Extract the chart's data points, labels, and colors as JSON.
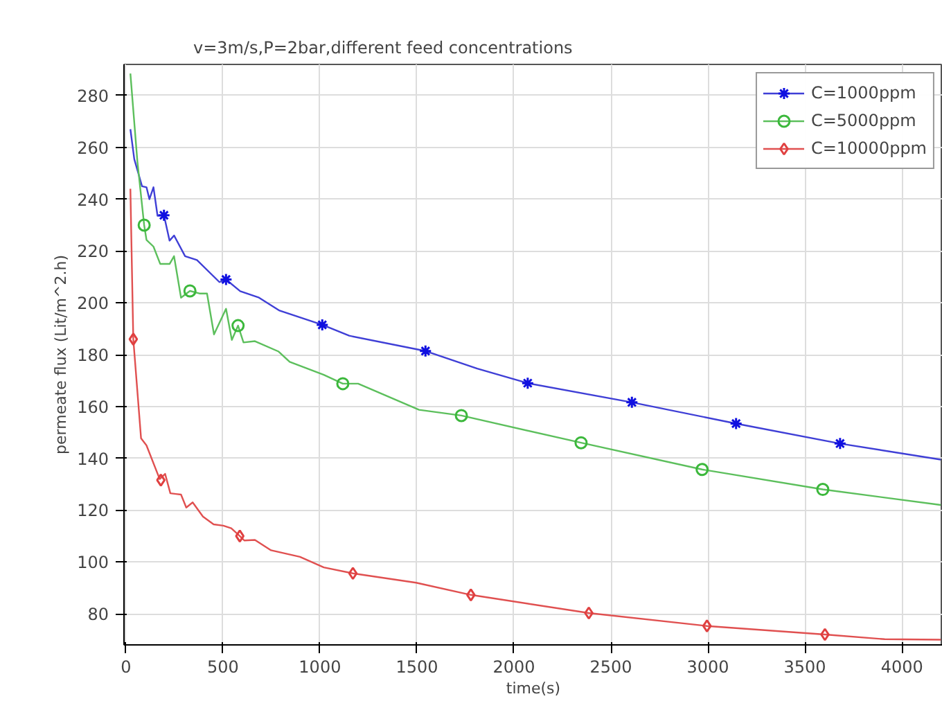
{
  "chart_data": {
    "type": "line",
    "title": "v=3m/s,P=2bar,different feed concentrations",
    "xlabel": "time(s)",
    "ylabel": "permeate flux (Lit/m^2.h)",
    "xlim": [
      -10,
      4210
    ],
    "ylim": [
      68,
      292
    ],
    "xticks": [
      0,
      500,
      1000,
      1500,
      2000,
      2500,
      3000,
      3500,
      4000
    ],
    "yticks": [
      80,
      100,
      120,
      140,
      160,
      180,
      200,
      220,
      240,
      260,
      280
    ],
    "grid": true,
    "legend": "top right",
    "line_style": "solid",
    "series": [
      {
        "name": "C=1000ppm",
        "color": "#3f3fd6",
        "marker": "none",
        "x": [
          23,
          43,
          83,
          106,
          121,
          142,
          163,
          196,
          225,
          248,
          305,
          366,
          482,
          516,
          589,
          686,
          792,
          1012,
          1151,
          1544,
          1811,
          2071,
          2608,
          3145,
          3681,
          4200
        ],
        "values": [
          267,
          255.5,
          245,
          244.6,
          240,
          244.6,
          233.6,
          233.8,
          224,
          226,
          218,
          216.5,
          208,
          209,
          204.5,
          202,
          197,
          191.5,
          187.3,
          181.4,
          174.6,
          169,
          161.6,
          153.4,
          145.7,
          139.5
        ]
      },
      {
        "color": "#1010e0",
        "type": "scatter",
        "marker": "cross",
        "x": [
          196,
          516,
          1012,
          1544,
          2071,
          2608,
          3145,
          3681
        ],
        "values": [
          233.8,
          209,
          191.5,
          181.4,
          169,
          161.6,
          153.4,
          145.7
        ]
      },
      {
        "name": "C=5000ppm",
        "color": "#5cbf5c",
        "marker": "none",
        "x": [
          23,
          59,
          94,
          106,
          142,
          177,
          225,
          248,
          284,
          330,
          379,
          418,
          454,
          516,
          546,
          578,
          606,
          665,
          787,
          844,
          1020,
          1118,
          1197,
          1511,
          1729,
          2346,
          2970,
          3592,
          4200
        ],
        "values": [
          288.5,
          254.6,
          230,
          224.3,
          221.7,
          215,
          215,
          218,
          202,
          204.6,
          203.6,
          203.6,
          187.8,
          197.7,
          185.7,
          191.2,
          184.7,
          185.2,
          181.2,
          177.2,
          172.2,
          168.8,
          168.8,
          158.7,
          156.5,
          146,
          135.7,
          128,
          122
        ]
      },
      {
        "color": "#3cb83c",
        "type": "scatter",
        "marker": "circle",
        "x": [
          94,
          330,
          578,
          1118,
          1729,
          2346,
          2970,
          3592
        ],
        "values": [
          230,
          204.6,
          191.2,
          168.8,
          156.5,
          146,
          135.7,
          128
        ]
      },
      {
        "name": "C=10000ppm",
        "color": "#e05050",
        "marker": "none",
        "x": [
          23,
          38,
          78,
          106,
          174,
          202,
          229,
          284,
          311,
          344,
          397,
          452,
          502,
          543,
          587,
          610,
          665,
          748,
          897,
          1020,
          1170,
          1496,
          1778,
          2386,
          2995,
          3603,
          3911,
          4200
        ],
        "values": [
          244,
          186,
          147.7,
          145,
          132,
          134,
          126.5,
          126,
          121,
          123,
          117.5,
          114.5,
          114,
          113,
          110,
          108.3,
          108.5,
          104.5,
          102,
          97.9,
          95.6,
          92,
          87.3,
          80.3,
          75.3,
          72,
          70.2,
          70
        ]
      },
      {
        "color": "#e04040",
        "type": "scatter",
        "marker": "diamond",
        "x": [
          38,
          180,
          587,
          1170,
          1778,
          2386,
          2995,
          3603
        ],
        "values": [
          186,
          131.6,
          110,
          95.6,
          87.3,
          80.3,
          75.3,
          72
        ]
      }
    ]
  }
}
